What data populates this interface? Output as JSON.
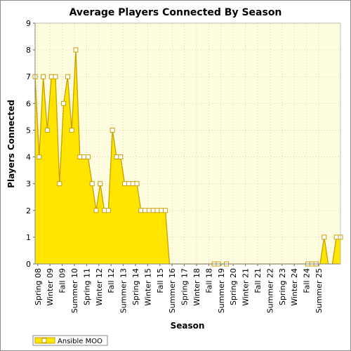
{
  "chart_data": {
    "type": "area",
    "title": "Average Players Connected By Season",
    "xlabel": "Season",
    "ylabel": "Players Connected",
    "ylim": [
      0,
      9
    ],
    "yticks": [
      0,
      1,
      2,
      3,
      4,
      5,
      6,
      7,
      8,
      9
    ],
    "grid": true,
    "legend_position": "bottom-left",
    "colors": {
      "fill": "#ffe500",
      "line": "#c8a000",
      "marker_fill": "#ffffff",
      "plot_bg": "#fffde0",
      "grid": "#c8c8a0"
    },
    "x_tick_labels": [
      "Spring 08",
      "Winter 09",
      "Fall 09",
      "Summer 10",
      "Spring 11",
      "Winter 12",
      "Fall 12",
      "Summer 13",
      "Spring 14",
      "Winter 15",
      "Fall 15",
      "Summer 16",
      "Spring 17",
      "Winter 18",
      "Fall 18",
      "Summer 19",
      "Spring 20",
      "Winter 21",
      "Fall 21",
      "Summer 22",
      "Spring 23",
      "Winter 24",
      "Fall 24",
      "Summer 25"
    ],
    "series": [
      {
        "name": "Ansible MOO",
        "values": [
          7,
          4,
          7,
          5,
          7,
          7,
          3,
          6,
          7,
          5,
          8,
          4,
          4,
          4,
          3,
          2,
          3,
          2,
          2,
          5,
          4,
          4,
          3,
          3,
          3,
          3,
          2,
          2,
          2,
          2,
          2,
          2,
          2,
          0,
          0,
          0,
          0,
          0,
          0,
          0,
          0,
          0,
          0,
          0,
          0,
          0,
          0,
          0,
          0,
          0,
          0,
          0,
          0,
          0,
          0,
          0,
          0,
          0,
          0,
          0,
          0,
          0,
          0,
          0,
          0,
          0,
          0,
          0,
          0,
          0,
          0,
          1,
          0,
          0,
          1,
          1
        ],
        "markers_shown": [
          true,
          true,
          true,
          true,
          true,
          true,
          true,
          true,
          true,
          true,
          true,
          true,
          true,
          true,
          true,
          true,
          true,
          true,
          true,
          true,
          true,
          true,
          true,
          true,
          true,
          true,
          true,
          true,
          true,
          true,
          true,
          true,
          true,
          false,
          false,
          false,
          false,
          false,
          false,
          false,
          false,
          false,
          false,
          false,
          true,
          true,
          false,
          true,
          false,
          false,
          false,
          false,
          false,
          false,
          false,
          false,
          false,
          false,
          false,
          false,
          false,
          false,
          false,
          false,
          false,
          false,
          false,
          true,
          true,
          true,
          false,
          true,
          false,
          false,
          true,
          true
        ]
      }
    ]
  }
}
